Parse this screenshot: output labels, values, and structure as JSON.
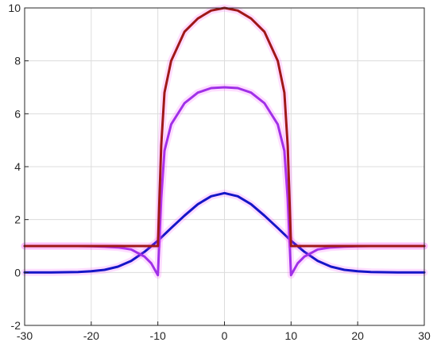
{
  "chart_data": {
    "type": "line",
    "title": "",
    "xlabel": "",
    "ylabel": "",
    "xlim": [
      -30,
      30
    ],
    "ylim": [
      -2,
      10
    ],
    "grid": true,
    "x_ticks": [
      "-30",
      "-20",
      "-10",
      "0",
      "10",
      "20",
      "30"
    ],
    "y_ticks": [
      "-2",
      "0",
      "2",
      "4",
      "6",
      "8",
      "10"
    ],
    "series": [
      {
        "color": "#1515c8",
        "x": [
          -30,
          -28,
          -26,
          -24,
          -22,
          -20,
          -18,
          -16,
          -14,
          -12,
          -10,
          -8,
          -6,
          -4,
          -2,
          0,
          2,
          4,
          6,
          8,
          10,
          12,
          14,
          16,
          18,
          20,
          22,
          24,
          26,
          28,
          30
        ],
        "y": [
          0,
          0,
          0,
          0.01,
          0.02,
          0.05,
          0.1,
          0.22,
          0.44,
          0.78,
          1.2,
          1.68,
          2.15,
          2.58,
          2.88,
          3,
          2.88,
          2.58,
          2.15,
          1.68,
          1.2,
          0.78,
          0.44,
          0.22,
          0.1,
          0.05,
          0.02,
          0.01,
          0,
          0,
          0
        ]
      },
      {
        "color": "#a030e8",
        "x": [
          -30,
          -26,
          -22,
          -20,
          -18,
          -16,
          -14,
          -12,
          -11,
          -10,
          -9.5,
          -9,
          -8,
          -6,
          -4,
          -2,
          0,
          2,
          4,
          6,
          8,
          9,
          9.5,
          10,
          11,
          12,
          14,
          16,
          18,
          20,
          22,
          26,
          30
        ],
        "y": [
          1,
          1,
          1,
          0.99,
          0.98,
          0.95,
          0.87,
          0.6,
          0.35,
          -0.1,
          2.8,
          4.6,
          5.6,
          6.4,
          6.8,
          6.97,
          7,
          6.97,
          6.8,
          6.4,
          5.6,
          4.6,
          2.8,
          -0.1,
          0.35,
          0.6,
          0.87,
          0.95,
          0.98,
          0.99,
          1,
          1,
          1
        ]
      },
      {
        "color": "#a01818",
        "x": [
          -30,
          -20,
          -10,
          -9.5,
          -9,
          -8,
          -6,
          -4,
          -2,
          0,
          2,
          4,
          6,
          8,
          9,
          9.5,
          10,
          20,
          30
        ],
        "y": [
          1,
          1,
          1,
          4.8,
          6.8,
          8,
          9.1,
          9.6,
          9.9,
          10,
          9.9,
          9.6,
          9.1,
          8,
          6.8,
          4.8,
          1,
          1,
          1
        ]
      }
    ]
  }
}
